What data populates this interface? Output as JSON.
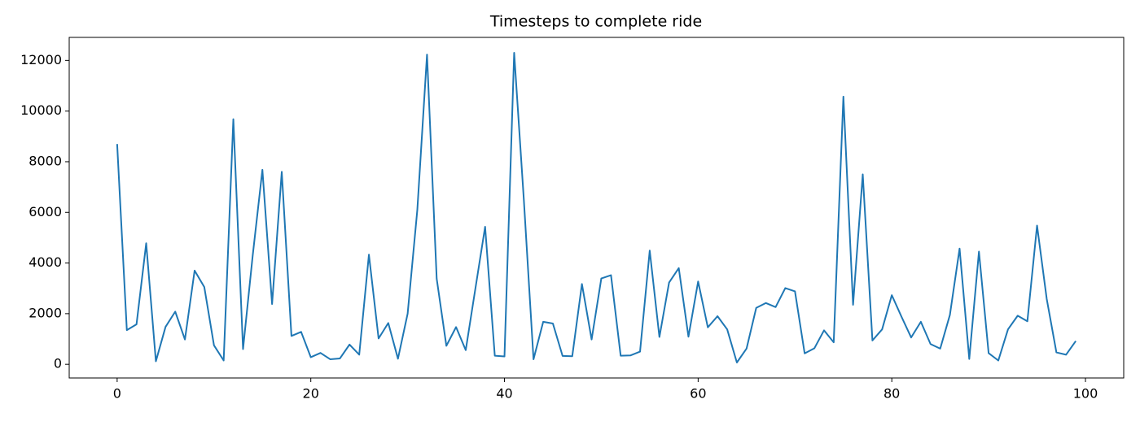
{
  "chart_data": {
    "type": "line",
    "title": "Timesteps to complete ride",
    "x": [
      0,
      1,
      2,
      3,
      4,
      5,
      6,
      7,
      8,
      9,
      10,
      11,
      12,
      13,
      14,
      15,
      16,
      17,
      18,
      19,
      20,
      21,
      22,
      23,
      24,
      25,
      26,
      27,
      28,
      29,
      30,
      31,
      32,
      33,
      34,
      35,
      36,
      37,
      38,
      39,
      40,
      41,
      42,
      43,
      44,
      45,
      46,
      47,
      48,
      49,
      50,
      51,
      52,
      53,
      54,
      55,
      56,
      57,
      58,
      59,
      60,
      61,
      62,
      63,
      64,
      65,
      66,
      67,
      68,
      69,
      70,
      71,
      72,
      73,
      74,
      75,
      76,
      77,
      78,
      79,
      80,
      81,
      82,
      83,
      84,
      85,
      86,
      87,
      88,
      89,
      90,
      91,
      92,
      93,
      94,
      95,
      96,
      97,
      98,
      99
    ],
    "values": [
      8700,
      1350,
      1580,
      4780,
      120,
      1480,
      2080,
      980,
      3700,
      3050,
      750,
      150,
      9680,
      600,
      4300,
      7680,
      2380,
      7600,
      1120,
      1280,
      280,
      450,
      200,
      230,
      780,
      380,
      4330,
      1020,
      1630,
      220,
      2000,
      6100,
      12230,
      3380,
      730,
      1470,
      560,
      3000,
      5430,
      340,
      310,
      12300,
      6500,
      200,
      1680,
      1610,
      330,
      320,
      3170,
      980,
      3390,
      3520,
      340,
      350,
      500,
      4490,
      1080,
      3230,
      3800,
      1090,
      3270,
      1460,
      1900,
      1380,
      70,
      620,
      2230,
      2420,
      2260,
      3010,
      2880,
      430,
      630,
      1340,
      870,
      10570,
      2350,
      7500,
      940,
      1380,
      2730,
      1880,
      1060,
      1680,
      800,
      620,
      1950,
      4570,
      210,
      4450,
      440,
      150,
      1380,
      1920,
      1700,
      5480,
      2580,
      470,
      380,
      920
    ],
    "color": "#1f77b4",
    "xlim": [
      -4.95,
      103.95
    ],
    "xticks": [
      0,
      20,
      40,
      60,
      80,
      100
    ],
    "ylim": [
      -540,
      12910
    ],
    "yticks": [
      0,
      2000,
      4000,
      6000,
      8000,
      10000,
      12000
    ],
    "grid": false
  }
}
